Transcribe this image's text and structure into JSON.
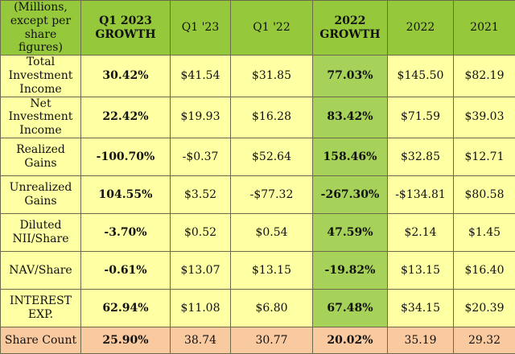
{
  "header": {
    "label": "(Millions, except per share figures)",
    "q1_2023_growth": "Q1 2023 GROWTH",
    "q1_23": "Q1 '23",
    "q1_22": "Q1 '22",
    "growth_2022": "2022 GROWTH",
    "y2022": "2022",
    "y2021": "2021"
  },
  "rows": [
    {
      "label": "Total Investment Income",
      "q1_growth": "30.42%",
      "q1_23": "$41.54",
      "q1_22": "$31.85",
      "growth_2022": "77.03%",
      "y2022": "$145.50",
      "y2021": "$82.19"
    },
    {
      "label": "Net Investment Income",
      "q1_growth": "22.42%",
      "q1_23": "$19.93",
      "q1_22": "$16.28",
      "growth_2022": "83.42%",
      "y2022": "$71.59",
      "y2021": "$39.03"
    },
    {
      "label": "Realized Gains",
      "q1_growth": "-100.70%",
      "q1_23": "-$0.37",
      "q1_22": "$52.64",
      "growth_2022": "158.46%",
      "y2022": "$32.85",
      "y2021": "$12.71"
    },
    {
      "label": "Unrealized Gains",
      "q1_growth": "104.55%",
      "q1_23": "$3.52",
      "q1_22": "-$77.32",
      "growth_2022": "-267.30%",
      "y2022": "-$134.81",
      "y2021": "$80.58"
    },
    {
      "label": "Diluted NII/Share",
      "q1_growth": "-3.70%",
      "q1_23": "$0.52",
      "q1_22": "$0.54",
      "growth_2022": "47.59%",
      "y2022": "$2.14",
      "y2021": "$1.45"
    },
    {
      "label": "NAV/Share",
      "q1_growth": "-0.61%",
      "q1_23": "$13.07",
      "q1_22": "$13.15",
      "growth_2022": "-19.82%",
      "y2022": "$13.15",
      "y2021": "$16.40"
    },
    {
      "label": "INTEREST EXP.",
      "q1_growth": "62.94%",
      "q1_23": "$11.08",
      "q1_22": "$6.80",
      "growth_2022": "67.48%",
      "y2022": "$34.15",
      "y2021": "$20.39"
    },
    {
      "label": "Share Count",
      "q1_growth": "25.90%",
      "q1_23": "38.74",
      "q1_22": "30.77",
      "growth_2022": "20.02%",
      "y2022": "35.19",
      "y2021": "29.32"
    }
  ],
  "colors": {
    "header_bg": "#95c83a",
    "body_bg": "#ffffa3",
    "growth_2022_bg": "#a6d25a",
    "share_count_bg": "#f9c9a0"
  }
}
